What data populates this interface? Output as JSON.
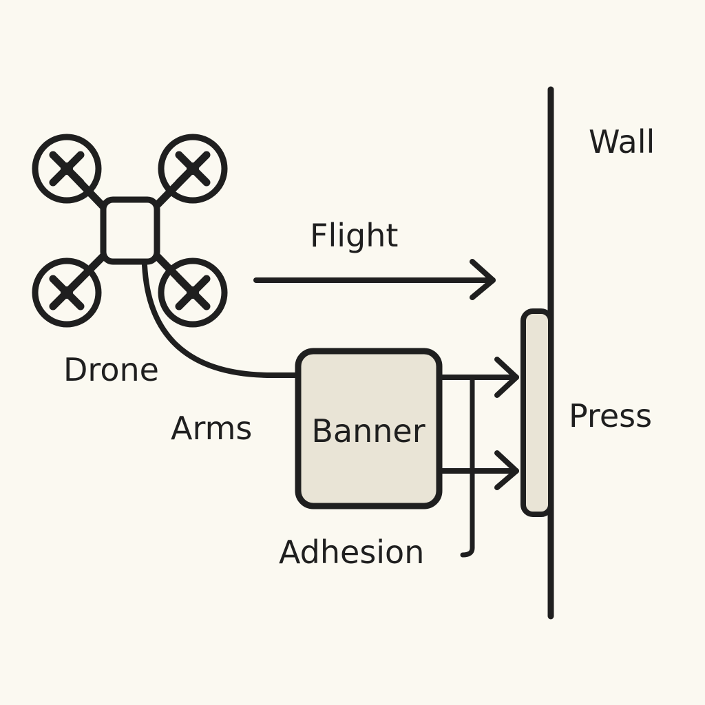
{
  "diagram": {
    "labels": {
      "wall": "Wall",
      "flight": "Flight",
      "drone": "Drone",
      "arms": "Arms",
      "banner": "Banner",
      "press": "Press",
      "adhesion": "Adhesion"
    },
    "colors": {
      "background": "#fbf9f1",
      "stroke": "#1f1f1f",
      "fill": "#e9e4d6"
    }
  }
}
